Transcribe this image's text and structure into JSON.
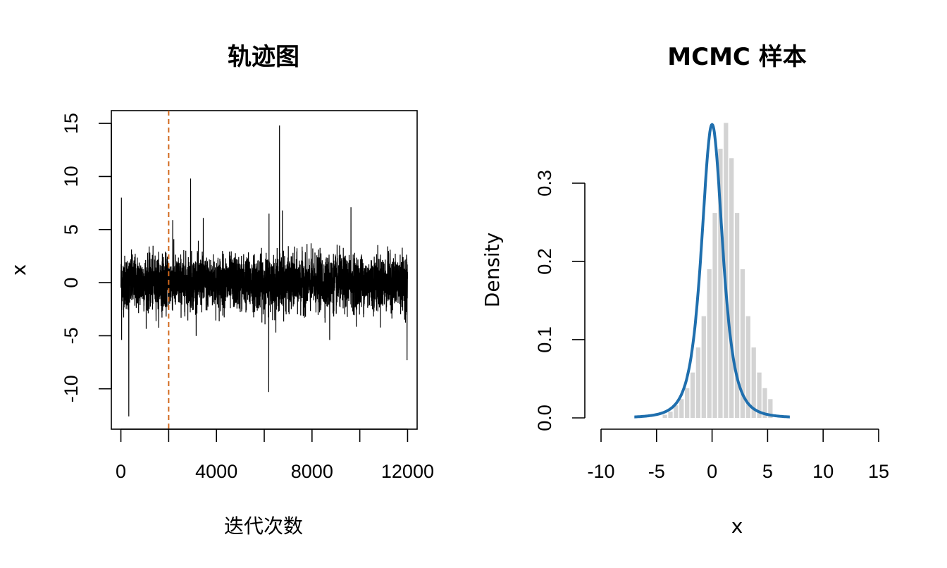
{
  "chart_data": [
    {
      "type": "line",
      "title": "轨迹图",
      "xlabel": "迭代次数",
      "ylabel": "x",
      "xlim": [
        -400,
        12400
      ],
      "ylim": [
        -13.8,
        16.2
      ],
      "xticks": [
        0,
        4000,
        8000,
        12000
      ],
      "yticks": [
        -10,
        -5,
        0,
        5,
        10,
        15
      ],
      "grid": false,
      "n_iterations": 12000,
      "burn_in_line": {
        "x": 2000,
        "color": "#d2691e",
        "style": "dashed"
      },
      "series_color": "#000000",
      "spikes": [
        {
          "x": 20,
          "y": 8.0
        },
        {
          "x": 30,
          "y": -5.4
        },
        {
          "x": 330,
          "y": -12.6
        },
        {
          "x": 2920,
          "y": 9.8
        },
        {
          "x": 6190,
          "y": -10.3
        },
        {
          "x": 6640,
          "y": 14.8
        },
        {
          "x": 9630,
          "y": 7.1
        },
        {
          "x": 6200,
          "y": 6.5
        },
        {
          "x": 11980,
          "y": -7.3
        },
        {
          "x": 2170,
          "y": 5.9
        },
        {
          "x": 3450,
          "y": 6.1
        },
        {
          "x": 6760,
          "y": 6.8
        },
        {
          "x": 8740,
          "y": -5.4
        }
      ]
    },
    {
      "type": "histogram+line",
      "title": "MCMC 样本",
      "xlabel": "x",
      "ylabel": "Density",
      "xlim": [
        -10,
        15
      ],
      "ylim": [
        0,
        0.38
      ],
      "xticks": [
        -10,
        -5,
        0,
        5,
        10,
        15
      ],
      "yticks": [
        0.0,
        0.1,
        0.2,
        0.3
      ],
      "grid": false,
      "bar_color": "#d3d3d3",
      "bin_width": 0.5,
      "bin_edges_start": -4.5,
      "bin_values": [
        0.004,
        0.008,
        0.016,
        0.024,
        0.038,
        0.058,
        0.09,
        0.13,
        0.19,
        0.262,
        0.344,
        0.377,
        0.332,
        0.262,
        0.19,
        0.13,
        0.09,
        0.058,
        0.038,
        0.024
      ],
      "curve": {
        "x_range": [
          -7,
          7
        ],
        "peak": 0.375,
        "scale": 1.0,
        "color": "#1f6fae"
      }
    }
  ],
  "left": {
    "title": "轨迹图",
    "xlabel": "迭代次数",
    "ylabel": "x",
    "xtick_labels": [
      "0",
      "4000",
      "8000",
      "12000"
    ],
    "ytick_labels": [
      "-10",
      "-5",
      "0",
      "5",
      "10",
      "15"
    ]
  },
  "right": {
    "title": "MCMC 样本",
    "xlabel": "x",
    "ylabel": "Density",
    "xtick_labels": [
      "-10",
      "-5",
      "0",
      "5",
      "10",
      "15"
    ],
    "ytick_labels": [
      "0.0",
      "0.1",
      "0.2",
      "0.3"
    ]
  }
}
